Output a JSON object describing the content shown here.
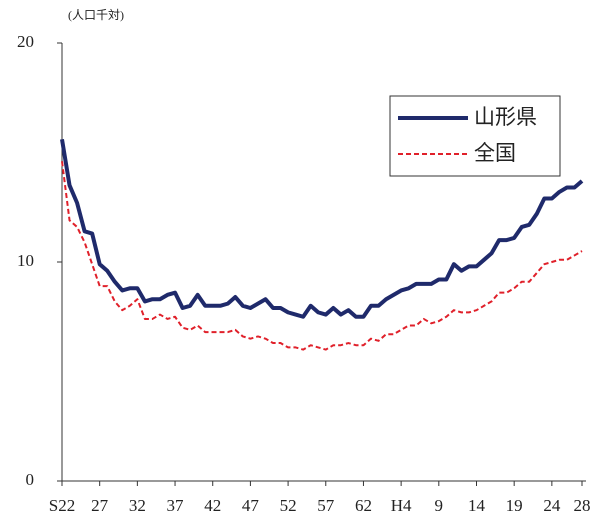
{
  "chart_data": {
    "type": "line",
    "y_label": "(人口千対)",
    "categories": [
      "S22",
      null,
      null,
      null,
      null,
      "27",
      null,
      null,
      null,
      null,
      "32",
      null,
      null,
      null,
      null,
      "37",
      null,
      null,
      null,
      null,
      "42",
      null,
      null,
      null,
      null,
      "47",
      null,
      null,
      null,
      null,
      "52",
      null,
      null,
      null,
      null,
      "57",
      null,
      null,
      null,
      null,
      "62",
      null,
      null,
      null,
      null,
      "H4",
      null,
      null,
      null,
      null,
      "9",
      null,
      null,
      null,
      null,
      "14",
      null,
      null,
      null,
      null,
      "19",
      null,
      null,
      null,
      null,
      "24",
      null,
      null,
      null,
      "28"
    ],
    "series": [
      {
        "name": "山形県",
        "color": "#1f2a6b",
        "dash": false,
        "values": [
          15.6,
          13.5,
          12.7,
          11.4,
          11.3,
          9.9,
          9.6,
          9.1,
          8.7,
          8.8,
          8.8,
          8.2,
          8.3,
          8.3,
          8.5,
          8.6,
          7.9,
          8.0,
          8.5,
          8.0,
          8.0,
          8.0,
          8.1,
          8.4,
          8.0,
          7.9,
          8.1,
          8.3,
          7.9,
          7.9,
          7.7,
          7.6,
          7.5,
          8.0,
          7.7,
          7.6,
          7.9,
          7.6,
          7.8,
          7.5,
          7.5,
          8.0,
          8.0,
          8.3,
          8.5,
          8.7,
          8.8,
          9.0,
          9.0,
          9.0,
          9.2,
          9.2,
          9.9,
          9.6,
          9.8,
          9.8,
          10.1,
          10.4,
          11.0,
          11.0,
          11.1,
          11.6,
          11.7,
          12.2,
          12.9,
          12.9,
          13.2,
          13.4,
          13.4,
          13.7
        ]
      },
      {
        "name": "全国",
        "color": "#e0202a",
        "dash": true,
        "values": [
          14.6,
          11.9,
          11.6,
          10.9,
          9.9,
          8.9,
          8.9,
          8.2,
          7.8,
          8.0,
          8.3,
          7.4,
          7.4,
          7.6,
          7.4,
          7.5,
          7.0,
          6.9,
          7.1,
          6.8,
          6.8,
          6.8,
          6.8,
          6.9,
          6.6,
          6.5,
          6.6,
          6.5,
          6.3,
          6.3,
          6.1,
          6.1,
          6.0,
          6.2,
          6.1,
          6.0,
          6.2,
          6.2,
          6.3,
          6.2,
          6.2,
          6.5,
          6.4,
          6.7,
          6.7,
          6.9,
          7.1,
          7.1,
          7.4,
          7.2,
          7.3,
          7.5,
          7.8,
          7.7,
          7.7,
          7.8,
          8.0,
          8.2,
          8.6,
          8.6,
          8.8,
          9.1,
          9.1,
          9.5,
          9.9,
          10.0,
          10.1,
          10.1,
          10.3,
          10.5
        ]
      }
    ],
    "ylim": [
      0,
      20
    ],
    "yticks": [
      0,
      10,
      20
    ],
    "grid": false,
    "legend": "upper right"
  }
}
